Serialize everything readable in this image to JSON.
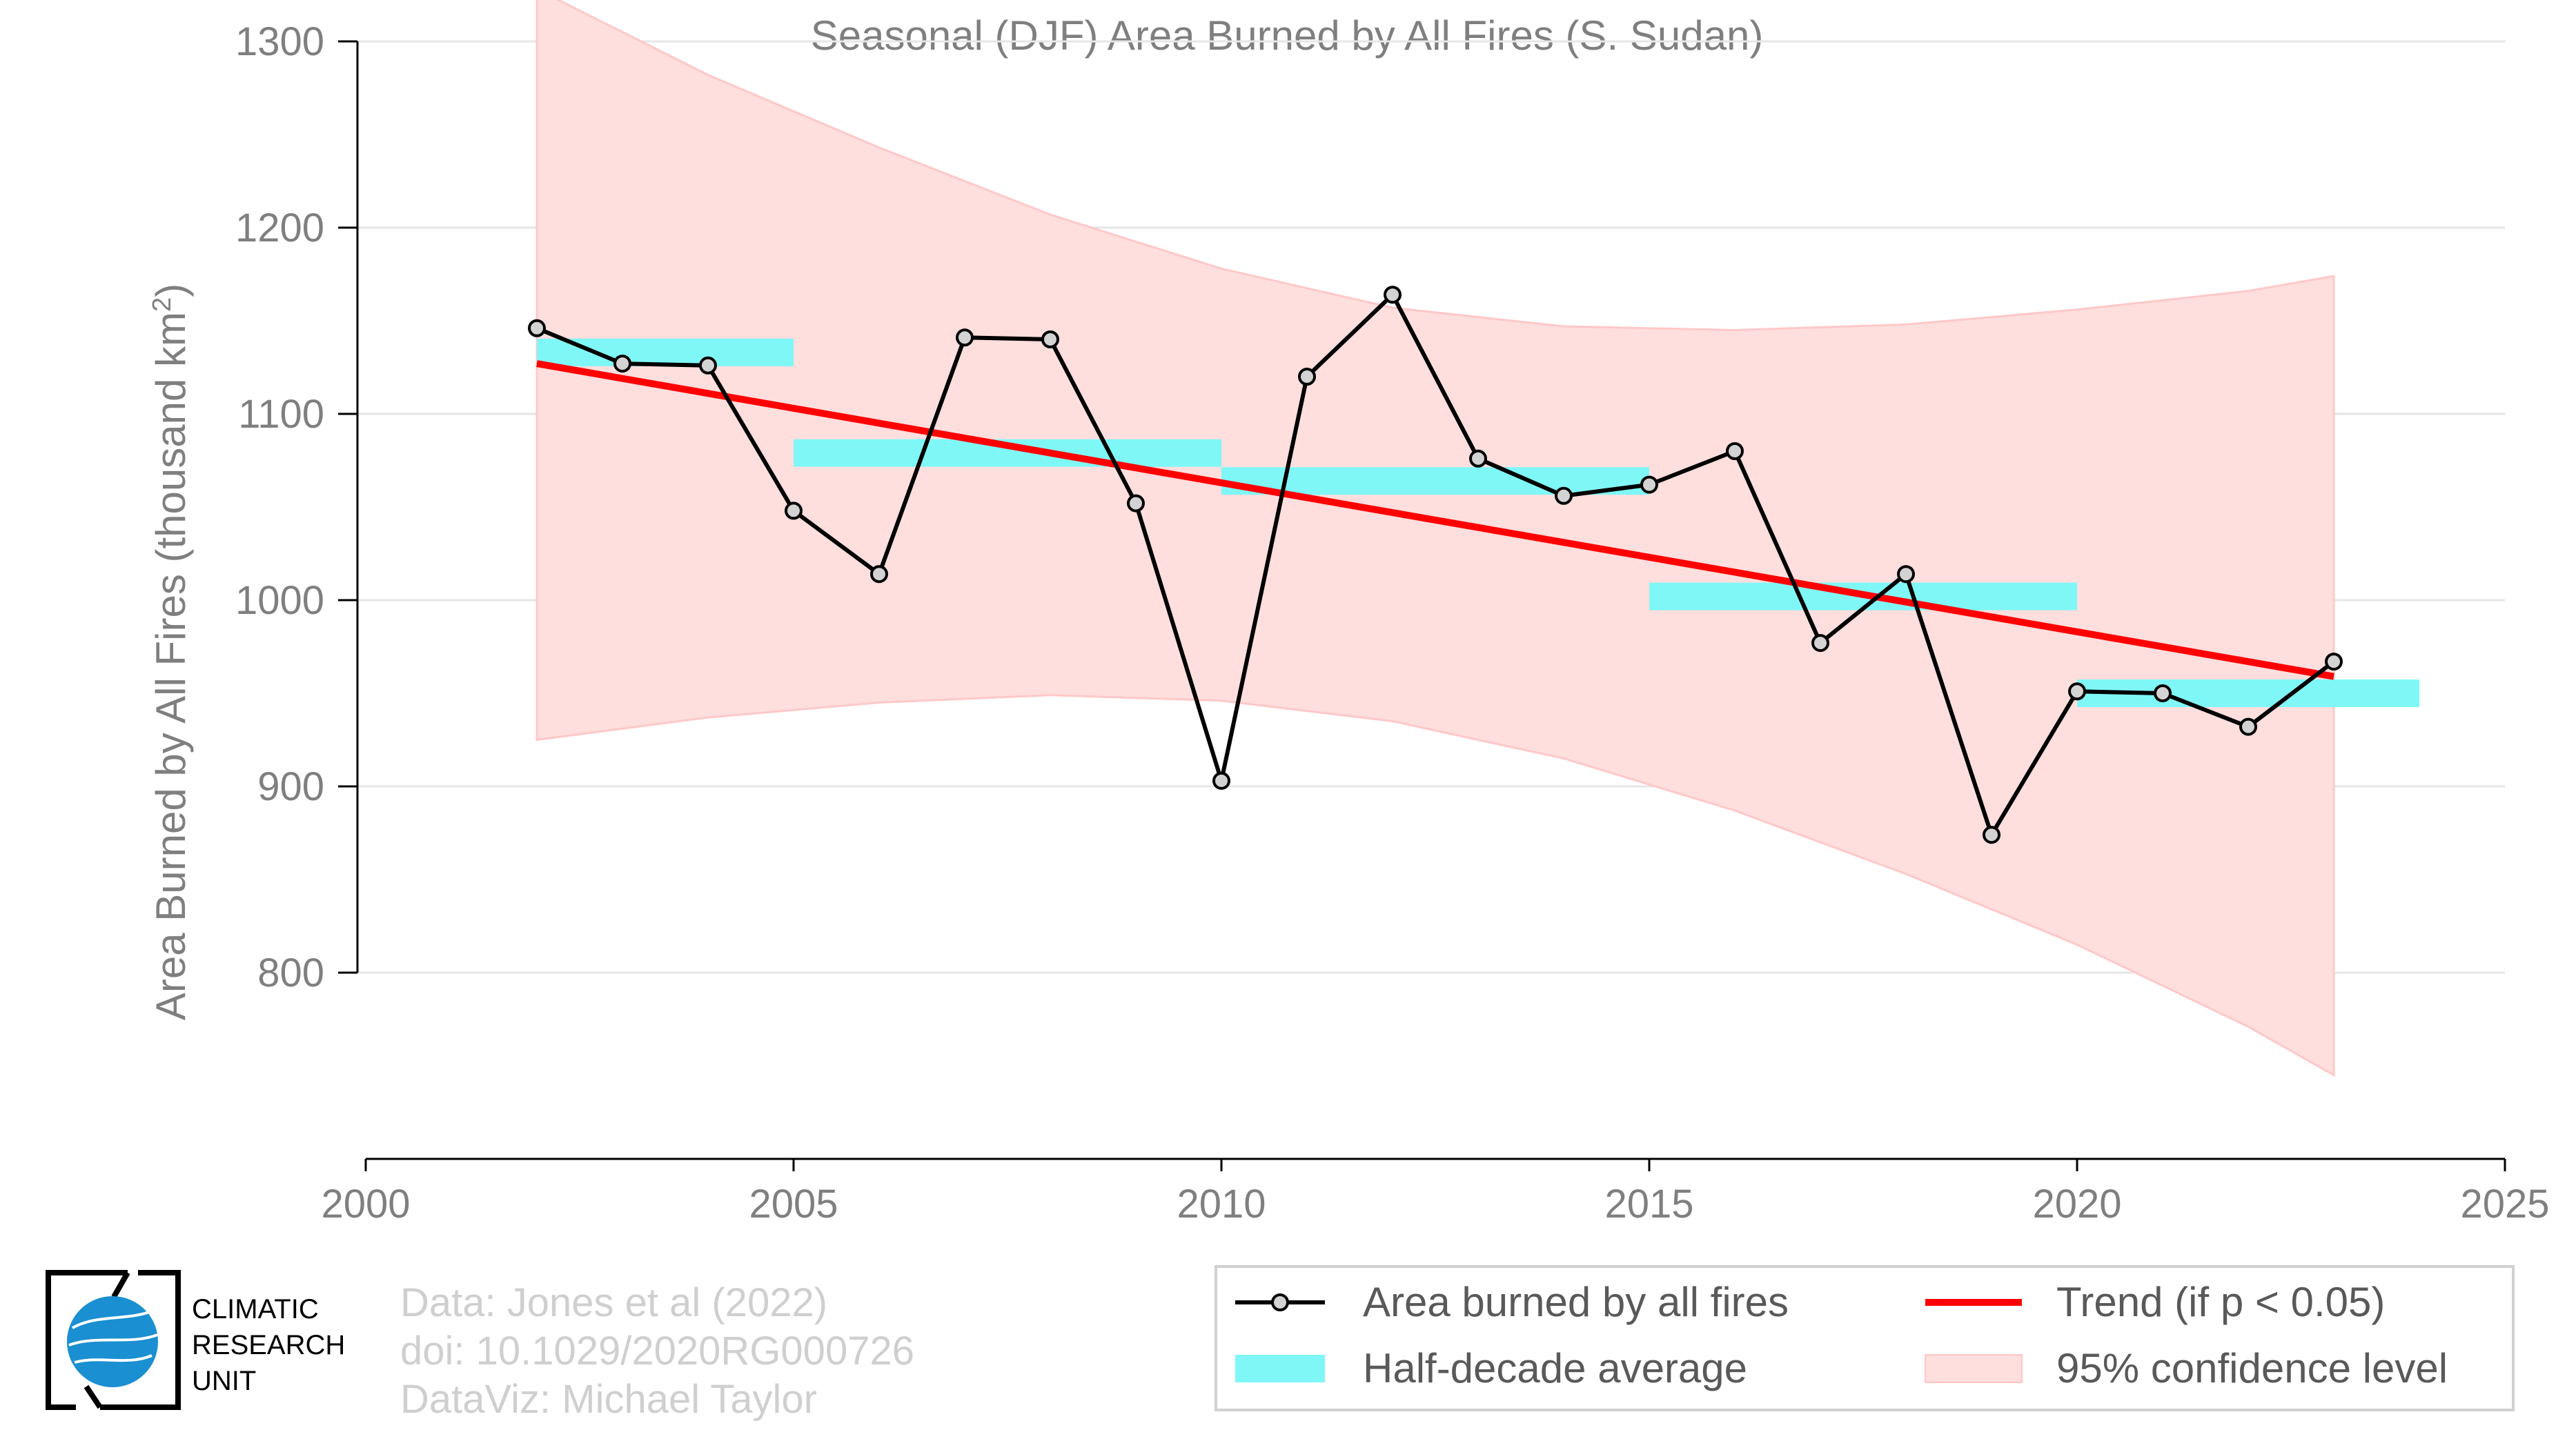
{
  "chart_data": {
    "type": "line",
    "title": "Seasonal (DJF) Area Burned by All Fires (S. Sudan)",
    "ylabel_main": "Area Burned by All Fires (thousand km",
    "ylabel_sup": "2",
    "ylabel_close": ")",
    "xlabel": "",
    "xlim": [
      2000,
      2025
    ],
    "ylim": [
      700,
      1300
    ],
    "x_ticks": [
      "2000",
      "2005",
      "2010",
      "2015",
      "2020",
      "2025"
    ],
    "y_ticks": [
      "800",
      "900",
      "1000",
      "1100",
      "1200",
      "1300"
    ],
    "grid": true,
    "series": [
      {
        "name": "Area burned by all fires",
        "color": "#000000",
        "x": [
          2002,
          2003,
          2004,
          2005,
          2006,
          2007,
          2008,
          2009,
          2010,
          2011,
          2012,
          2013,
          2014,
          2015,
          2016,
          2017,
          2018,
          2019,
          2020,
          2021,
          2022,
          2023
        ],
        "y": [
          1146,
          1127,
          1126,
          1048,
          1014,
          1141,
          1140,
          1052,
          903,
          1120,
          1164,
          1076,
          1056,
          1062,
          1080,
          977,
          1014,
          874,
          951,
          950,
          932,
          967
        ]
      }
    ],
    "half_decade": {
      "name": "Half-decade average",
      "color": "#7ff7f7",
      "segments": [
        {
          "x0": 2002,
          "x1": 2005,
          "y": 1133
        },
        {
          "x0": 2005,
          "x1": 2010,
          "y": 1079
        },
        {
          "x0": 2010,
          "x1": 2015,
          "y": 1064
        },
        {
          "x0": 2015,
          "x1": 2020,
          "y": 1002
        },
        {
          "x0": 2020,
          "x1": 2024,
          "y": 950
        }
      ]
    },
    "trend": {
      "name": "Trend (if p < 0.05)",
      "color": "#ff0000",
      "x": [
        2002,
        2023
      ],
      "y": [
        1127,
        959
      ]
    },
    "confidence": {
      "name": "95% confidence level",
      "color": "#ffdede",
      "x": [
        2002,
        2004,
        2006,
        2008,
        2010,
        2012,
        2014,
        2016,
        2018,
        2020,
        2022,
        2023
      ],
      "upper": [
        1328,
        1282,
        1243,
        1207,
        1178,
        1157,
        1147,
        1145,
        1148,
        1156,
        1166,
        1174
      ],
      "lower": [
        925,
        937,
        945,
        949,
        946,
        935,
        915,
        887,
        853,
        815,
        771,
        745
      ]
    },
    "legend_position": "bottom-right"
  },
  "credits": {
    "line1": "Data: Jones et al (2022)",
    "line2": "doi: 10.1029/2020RG000726",
    "line3": "DataViz: Michael Taylor"
  },
  "logo": {
    "line1": "CLIMATIC",
    "line2": "RESEARCH",
    "line3": "UNIT"
  }
}
